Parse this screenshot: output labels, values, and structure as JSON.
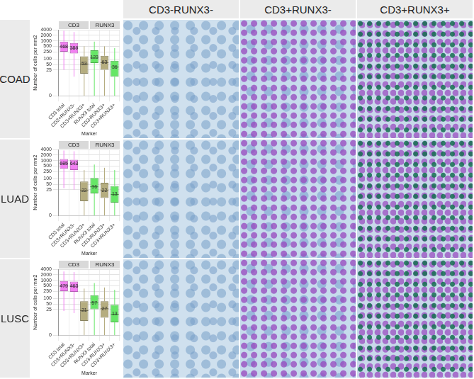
{
  "column_heads": [
    "CD3-RUNX3-",
    "CD3+RUNX3-",
    "CD3+RUNX3+"
  ],
  "row_labels": [
    "COAD",
    "LUAD",
    "LUSC"
  ],
  "chart_data": [
    {
      "type": "box",
      "y_label": "Number of cells per mm2",
      "x_label": "Marker",
      "log": "y",
      "grid": true,
      "data_labels": true,
      "ylim": [
        0,
        4000
      ],
      "yticks": [
        0,
        25,
        50,
        100,
        250,
        500,
        1000,
        2000,
        4000
      ],
      "facets": [
        {
          "name": "CD3",
          "categories": [
            "CD3 total",
            "CD3+RUNX3-",
            "CD3+RUNX3+"
          ],
          "colors": [
            "#f27ff2",
            "#f27ff2",
            "#b5ad7f"
          ],
          "boxes": [
            {
              "min": 25,
              "q1": 250,
              "median": 468,
              "q3": 900,
              "max": 3500
            },
            {
              "min": 10,
              "q1": 200,
              "median": 389,
              "q3": 750,
              "max": 3000
            },
            {
              "min": 0,
              "q1": 15,
              "median": 53,
              "q3": 140,
              "max": 500
            }
          ]
        },
        {
          "name": "RUNX3",
          "categories": [
            "RUNX3 total",
            "CD3-RUNX3+",
            "CD3+RUNX3+"
          ],
          "colors": [
            "#66e666",
            "#b5ad7f",
            "#66e666"
          ],
          "boxes": [
            {
              "min": 0,
              "q1": 60,
              "median": 123,
              "q3": 300,
              "max": 900
            },
            {
              "min": 0,
              "q1": 25,
              "median": 63,
              "q3": 150,
              "max": 500
            },
            {
              "min": 0,
              "q1": 10,
              "median": 36,
              "q3": 80,
              "max": 400
            }
          ]
        }
      ]
    },
    {
      "type": "box",
      "y_label": "Number of cells per mm2",
      "x_label": "Marker",
      "log": "y",
      "grid": true,
      "data_labels": true,
      "ylim": [
        0,
        4000
      ],
      "yticks": [
        0,
        25,
        50,
        100,
        250,
        500,
        1000,
        2000,
        4000
      ],
      "facets": [
        {
          "name": "CD3",
          "categories": [
            "CD3 total",
            "CD3+RUNX3-",
            "CD3+RUNX3+"
          ],
          "colors": [
            "#f27ff2",
            "#f27ff2",
            "#b5ad7f"
          ],
          "boxes": [
            {
              "min": 30,
              "q1": 350,
              "median": 685,
              "q3": 1200,
              "max": 3500
            },
            {
              "min": 25,
              "q1": 300,
              "median": 643,
              "q3": 1100,
              "max": 3200
            },
            {
              "min": 0,
              "q1": 5,
              "median": 22,
              "q3": 70,
              "max": 300
            }
          ]
        },
        {
          "name": "RUNX3",
          "categories": [
            "RUNX3 total",
            "CD3-RUNX3+",
            "CD3+RUNX3+"
          ],
          "colors": [
            "#66e666",
            "#b5ad7f",
            "#66e666"
          ],
          "boxes": [
            {
              "min": 0,
              "q1": 15,
              "median": 36,
              "q3": 110,
              "max": 600
            },
            {
              "min": 0,
              "q1": 8,
              "median": 22,
              "q3": 60,
              "max": 400
            },
            {
              "min": 0,
              "q1": 4,
              "median": 13,
              "q3": 40,
              "max": 300
            }
          ]
        }
      ]
    },
    {
      "type": "box",
      "y_label": "Number of cells per mm2",
      "x_label": "Marker",
      "log": "y",
      "grid": true,
      "data_labels": true,
      "ylim": [
        0,
        4000
      ],
      "yticks": [
        0,
        25,
        50,
        100,
        250,
        500,
        1000,
        2000,
        4000
      ],
      "facets": [
        {
          "name": "CD3",
          "categories": [
            "CD3 total",
            "CD3+RUNX3-",
            "CD3+RUNX3+"
          ],
          "colors": [
            "#f27ff2",
            "#f27ff2",
            "#b5ad7f"
          ],
          "boxes": [
            {
              "min": 20,
              "q1": 250,
              "median": 479,
              "q3": 900,
              "max": 3000
            },
            {
              "min": 15,
              "q1": 230,
              "median": 463,
              "q3": 850,
              "max": 2800
            },
            {
              "min": 0,
              "q1": 5,
              "median": 21,
              "q3": 70,
              "max": 350
            }
          ]
        },
        {
          "name": "RUNX3",
          "categories": [
            "RUNX3 total",
            "CD3-RUNX3+",
            "CD3+RUNX3+"
          ],
          "colors": [
            "#66e666",
            "#b5ad7f",
            "#66e666"
          ],
          "boxes": [
            {
              "min": 0,
              "q1": 25,
              "median": 57,
              "q3": 150,
              "max": 700
            },
            {
              "min": 0,
              "q1": 8,
              "median": 27,
              "q3": 70,
              "max": 400
            },
            {
              "min": 0,
              "q1": 4,
              "median": 13,
              "q3": 45,
              "max": 300
            }
          ]
        }
      ]
    }
  ]
}
